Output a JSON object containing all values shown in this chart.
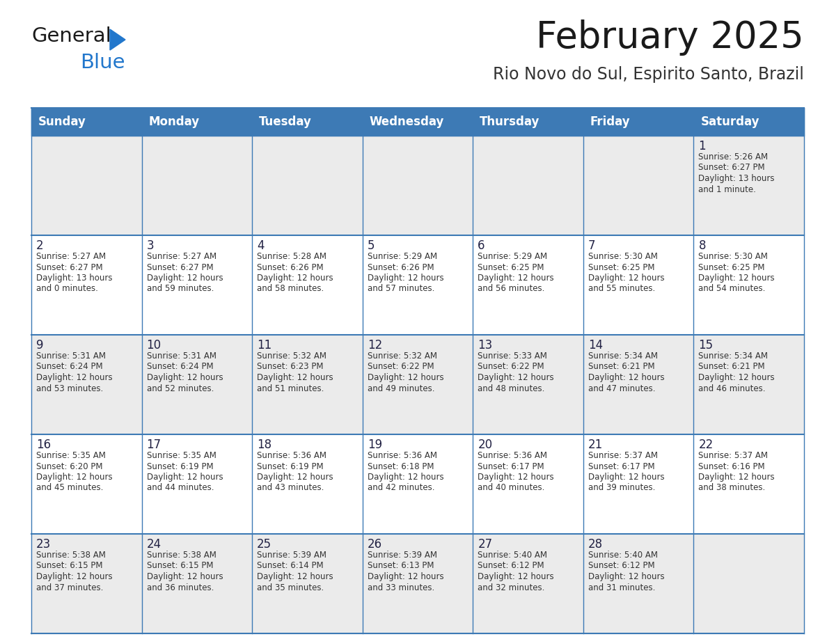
{
  "title": "February 2025",
  "subtitle": "Rio Novo do Sul, Espirito Santo, Brazil",
  "header_color": "#3d7ab5",
  "header_text_color": "#ffffff",
  "row_bg_colors": [
    "#ebebeb",
    "#ffffff",
    "#ebebeb",
    "#ffffff",
    "#ebebeb"
  ],
  "border_color": "#3d7ab5",
  "day_headers": [
    "Sunday",
    "Monday",
    "Tuesday",
    "Wednesday",
    "Thursday",
    "Friday",
    "Saturday"
  ],
  "title_color": "#1a1a1a",
  "subtitle_color": "#333333",
  "day_num_color": "#222244",
  "cell_text_color": "#333333",
  "weeks": [
    [
      {
        "day": 0,
        "lines": []
      },
      {
        "day": 0,
        "lines": []
      },
      {
        "day": 0,
        "lines": []
      },
      {
        "day": 0,
        "lines": []
      },
      {
        "day": 0,
        "lines": []
      },
      {
        "day": 0,
        "lines": []
      },
      {
        "day": 1,
        "lines": [
          "Sunrise: 5:26 AM",
          "Sunset: 6:27 PM",
          "Daylight: 13 hours",
          "and 1 minute."
        ]
      }
    ],
    [
      {
        "day": 2,
        "lines": [
          "Sunrise: 5:27 AM",
          "Sunset: 6:27 PM",
          "Daylight: 13 hours",
          "and 0 minutes."
        ]
      },
      {
        "day": 3,
        "lines": [
          "Sunrise: 5:27 AM",
          "Sunset: 6:27 PM",
          "Daylight: 12 hours",
          "and 59 minutes."
        ]
      },
      {
        "day": 4,
        "lines": [
          "Sunrise: 5:28 AM",
          "Sunset: 6:26 PM",
          "Daylight: 12 hours",
          "and 58 minutes."
        ]
      },
      {
        "day": 5,
        "lines": [
          "Sunrise: 5:29 AM",
          "Sunset: 6:26 PM",
          "Daylight: 12 hours",
          "and 57 minutes."
        ]
      },
      {
        "day": 6,
        "lines": [
          "Sunrise: 5:29 AM",
          "Sunset: 6:25 PM",
          "Daylight: 12 hours",
          "and 56 minutes."
        ]
      },
      {
        "day": 7,
        "lines": [
          "Sunrise: 5:30 AM",
          "Sunset: 6:25 PM",
          "Daylight: 12 hours",
          "and 55 minutes."
        ]
      },
      {
        "day": 8,
        "lines": [
          "Sunrise: 5:30 AM",
          "Sunset: 6:25 PM",
          "Daylight: 12 hours",
          "and 54 minutes."
        ]
      }
    ],
    [
      {
        "day": 9,
        "lines": [
          "Sunrise: 5:31 AM",
          "Sunset: 6:24 PM",
          "Daylight: 12 hours",
          "and 53 minutes."
        ]
      },
      {
        "day": 10,
        "lines": [
          "Sunrise: 5:31 AM",
          "Sunset: 6:24 PM",
          "Daylight: 12 hours",
          "and 52 minutes."
        ]
      },
      {
        "day": 11,
        "lines": [
          "Sunrise: 5:32 AM",
          "Sunset: 6:23 PM",
          "Daylight: 12 hours",
          "and 51 minutes."
        ]
      },
      {
        "day": 12,
        "lines": [
          "Sunrise: 5:32 AM",
          "Sunset: 6:22 PM",
          "Daylight: 12 hours",
          "and 49 minutes."
        ]
      },
      {
        "day": 13,
        "lines": [
          "Sunrise: 5:33 AM",
          "Sunset: 6:22 PM",
          "Daylight: 12 hours",
          "and 48 minutes."
        ]
      },
      {
        "day": 14,
        "lines": [
          "Sunrise: 5:34 AM",
          "Sunset: 6:21 PM",
          "Daylight: 12 hours",
          "and 47 minutes."
        ]
      },
      {
        "day": 15,
        "lines": [
          "Sunrise: 5:34 AM",
          "Sunset: 6:21 PM",
          "Daylight: 12 hours",
          "and 46 minutes."
        ]
      }
    ],
    [
      {
        "day": 16,
        "lines": [
          "Sunrise: 5:35 AM",
          "Sunset: 6:20 PM",
          "Daylight: 12 hours",
          "and 45 minutes."
        ]
      },
      {
        "day": 17,
        "lines": [
          "Sunrise: 5:35 AM",
          "Sunset: 6:19 PM",
          "Daylight: 12 hours",
          "and 44 minutes."
        ]
      },
      {
        "day": 18,
        "lines": [
          "Sunrise: 5:36 AM",
          "Sunset: 6:19 PM",
          "Daylight: 12 hours",
          "and 43 minutes."
        ]
      },
      {
        "day": 19,
        "lines": [
          "Sunrise: 5:36 AM",
          "Sunset: 6:18 PM",
          "Daylight: 12 hours",
          "and 42 minutes."
        ]
      },
      {
        "day": 20,
        "lines": [
          "Sunrise: 5:36 AM",
          "Sunset: 6:17 PM",
          "Daylight: 12 hours",
          "and 40 minutes."
        ]
      },
      {
        "day": 21,
        "lines": [
          "Sunrise: 5:37 AM",
          "Sunset: 6:17 PM",
          "Daylight: 12 hours",
          "and 39 minutes."
        ]
      },
      {
        "day": 22,
        "lines": [
          "Sunrise: 5:37 AM",
          "Sunset: 6:16 PM",
          "Daylight: 12 hours",
          "and 38 minutes."
        ]
      }
    ],
    [
      {
        "day": 23,
        "lines": [
          "Sunrise: 5:38 AM",
          "Sunset: 6:15 PM",
          "Daylight: 12 hours",
          "and 37 minutes."
        ]
      },
      {
        "day": 24,
        "lines": [
          "Sunrise: 5:38 AM",
          "Sunset: 6:15 PM",
          "Daylight: 12 hours",
          "and 36 minutes."
        ]
      },
      {
        "day": 25,
        "lines": [
          "Sunrise: 5:39 AM",
          "Sunset: 6:14 PM",
          "Daylight: 12 hours",
          "and 35 minutes."
        ]
      },
      {
        "day": 26,
        "lines": [
          "Sunrise: 5:39 AM",
          "Sunset: 6:13 PM",
          "Daylight: 12 hours",
          "and 33 minutes."
        ]
      },
      {
        "day": 27,
        "lines": [
          "Sunrise: 5:40 AM",
          "Sunset: 6:12 PM",
          "Daylight: 12 hours",
          "and 32 minutes."
        ]
      },
      {
        "day": 28,
        "lines": [
          "Sunrise: 5:40 AM",
          "Sunset: 6:12 PM",
          "Daylight: 12 hours",
          "and 31 minutes."
        ]
      },
      {
        "day": 0,
        "lines": []
      }
    ]
  ],
  "logo_general_color": "#1a1a1a",
  "logo_blue_color": "#2277cc",
  "logo_triangle_color": "#2277cc"
}
